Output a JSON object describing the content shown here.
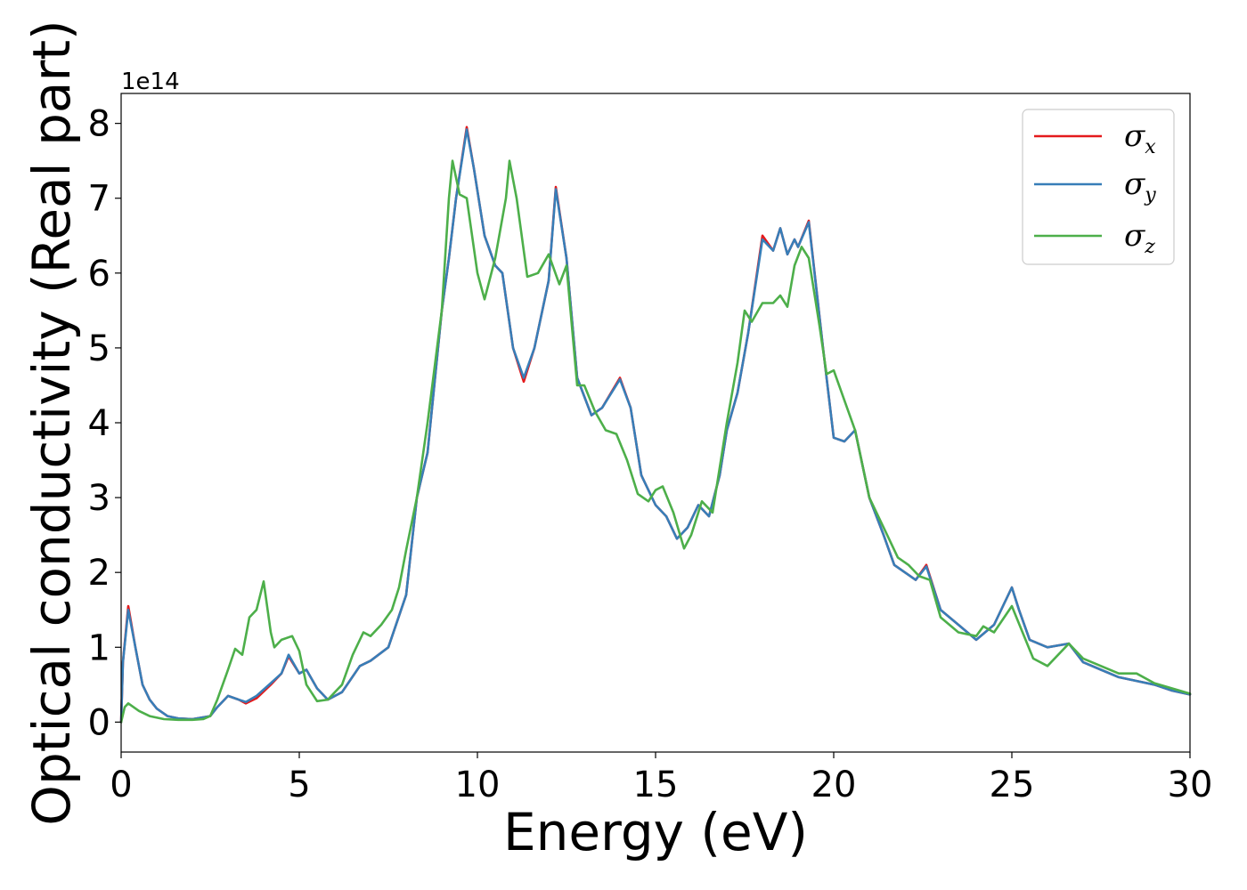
{
  "chart_data": {
    "type": "line",
    "xlabel": "Energy (eV)",
    "ylabel": "Optical conductivity (Real part)",
    "y_offset_label": "1e14",
    "xlim": [
      0,
      30
    ],
    "ylim": [
      -0.4,
      8.4
    ],
    "xticks": [
      0,
      5,
      10,
      15,
      20,
      25,
      30
    ],
    "yticks": [
      0,
      1,
      2,
      3,
      4,
      5,
      6,
      7,
      8
    ],
    "grid": false,
    "legend_position": "top-right",
    "series": [
      {
        "name": "σx",
        "legend_symbol": "σ",
        "legend_sub": "x",
        "color": "#e41a1c",
        "points": [
          [
            0,
            0.0
          ],
          [
            0.05,
            0.8
          ],
          [
            0.2,
            1.55
          ],
          [
            0.4,
            1.0
          ],
          [
            0.6,
            0.5
          ],
          [
            0.8,
            0.3
          ],
          [
            1.0,
            0.18
          ],
          [
            1.3,
            0.08
          ],
          [
            1.6,
            0.05
          ],
          [
            2.0,
            0.04
          ],
          [
            2.5,
            0.08
          ],
          [
            2.7,
            0.2
          ],
          [
            3.0,
            0.35
          ],
          [
            3.3,
            0.3
          ],
          [
            3.5,
            0.25
          ],
          [
            3.8,
            0.32
          ],
          [
            4.2,
            0.5
          ],
          [
            4.5,
            0.65
          ],
          [
            4.7,
            0.88
          ],
          [
            5.0,
            0.65
          ],
          [
            5.2,
            0.7
          ],
          [
            5.5,
            0.45
          ],
          [
            5.8,
            0.3
          ],
          [
            6.2,
            0.4
          ],
          [
            6.7,
            0.75
          ],
          [
            7.0,
            0.82
          ],
          [
            7.5,
            1.0
          ],
          [
            8.0,
            1.7
          ],
          [
            8.3,
            3.0
          ],
          [
            8.6,
            3.6
          ],
          [
            9.0,
            5.5
          ],
          [
            9.2,
            6.2
          ],
          [
            9.4,
            7.0
          ],
          [
            9.7,
            7.95
          ],
          [
            9.9,
            7.4
          ],
          [
            10.2,
            6.5
          ],
          [
            10.5,
            6.1
          ],
          [
            10.7,
            6.0
          ],
          [
            11.0,
            5.0
          ],
          [
            11.3,
            4.55
          ],
          [
            11.6,
            5.0
          ],
          [
            12.0,
            5.9
          ],
          [
            12.2,
            7.15
          ],
          [
            12.5,
            6.2
          ],
          [
            12.8,
            4.6
          ],
          [
            13.2,
            4.1
          ],
          [
            13.5,
            4.2
          ],
          [
            14.0,
            4.6
          ],
          [
            14.3,
            4.2
          ],
          [
            14.6,
            3.3
          ],
          [
            15.0,
            2.9
          ],
          [
            15.3,
            2.75
          ],
          [
            15.6,
            2.45
          ],
          [
            15.9,
            2.6
          ],
          [
            16.2,
            2.9
          ],
          [
            16.5,
            2.75
          ],
          [
            16.8,
            3.3
          ],
          [
            17.0,
            3.9
          ],
          [
            17.3,
            4.4
          ],
          [
            17.6,
            5.2
          ],
          [
            18.0,
            6.5
          ],
          [
            18.3,
            6.3
          ],
          [
            18.5,
            6.6
          ],
          [
            18.7,
            6.25
          ],
          [
            18.9,
            6.45
          ],
          [
            19.0,
            6.35
          ],
          [
            19.3,
            6.7
          ],
          [
            19.7,
            5.0
          ],
          [
            20.0,
            3.8
          ],
          [
            20.3,
            3.75
          ],
          [
            20.6,
            3.9
          ],
          [
            21.0,
            3.0
          ],
          [
            21.4,
            2.5
          ],
          [
            21.7,
            2.1
          ],
          [
            22.0,
            2.0
          ],
          [
            22.3,
            1.9
          ],
          [
            22.6,
            2.1
          ],
          [
            23.0,
            1.5
          ],
          [
            23.5,
            1.3
          ],
          [
            24.0,
            1.1
          ],
          [
            24.5,
            1.3
          ],
          [
            25.0,
            1.8
          ],
          [
            25.2,
            1.5
          ],
          [
            25.5,
            1.1
          ],
          [
            26.0,
            1.0
          ],
          [
            26.6,
            1.05
          ],
          [
            27.0,
            0.8
          ],
          [
            27.5,
            0.7
          ],
          [
            28.0,
            0.6
          ],
          [
            28.5,
            0.55
          ],
          [
            29.0,
            0.5
          ],
          [
            29.5,
            0.42
          ],
          [
            30.0,
            0.37
          ]
        ]
      },
      {
        "name": "σy",
        "legend_symbol": "σ",
        "legend_sub": "y",
        "color": "#377eb8",
        "points": [
          [
            0,
            0.0
          ],
          [
            0.05,
            0.8
          ],
          [
            0.2,
            1.5
          ],
          [
            0.4,
            1.0
          ],
          [
            0.6,
            0.5
          ],
          [
            0.8,
            0.3
          ],
          [
            1.0,
            0.18
          ],
          [
            1.3,
            0.08
          ],
          [
            1.6,
            0.05
          ],
          [
            2.0,
            0.04
          ],
          [
            2.5,
            0.08
          ],
          [
            2.7,
            0.2
          ],
          [
            3.0,
            0.35
          ],
          [
            3.3,
            0.3
          ],
          [
            3.5,
            0.27
          ],
          [
            3.8,
            0.35
          ],
          [
            4.2,
            0.52
          ],
          [
            4.5,
            0.65
          ],
          [
            4.7,
            0.9
          ],
          [
            5.0,
            0.65
          ],
          [
            5.2,
            0.7
          ],
          [
            5.5,
            0.45
          ],
          [
            5.8,
            0.3
          ],
          [
            6.2,
            0.4
          ],
          [
            6.7,
            0.75
          ],
          [
            7.0,
            0.82
          ],
          [
            7.5,
            1.0
          ],
          [
            8.0,
            1.7
          ],
          [
            8.3,
            3.0
          ],
          [
            8.6,
            3.6
          ],
          [
            9.0,
            5.5
          ],
          [
            9.2,
            6.2
          ],
          [
            9.4,
            7.0
          ],
          [
            9.7,
            7.92
          ],
          [
            9.9,
            7.4
          ],
          [
            10.2,
            6.5
          ],
          [
            10.5,
            6.1
          ],
          [
            10.7,
            6.0
          ],
          [
            11.0,
            5.0
          ],
          [
            11.3,
            4.6
          ],
          [
            11.6,
            5.0
          ],
          [
            12.0,
            5.9
          ],
          [
            12.2,
            7.12
          ],
          [
            12.5,
            6.2
          ],
          [
            12.8,
            4.6
          ],
          [
            13.2,
            4.1
          ],
          [
            13.5,
            4.2
          ],
          [
            14.0,
            4.58
          ],
          [
            14.3,
            4.2
          ],
          [
            14.6,
            3.3
          ],
          [
            15.0,
            2.9
          ],
          [
            15.3,
            2.75
          ],
          [
            15.6,
            2.45
          ],
          [
            15.9,
            2.6
          ],
          [
            16.2,
            2.9
          ],
          [
            16.5,
            2.75
          ],
          [
            16.8,
            3.3
          ],
          [
            17.0,
            3.9
          ],
          [
            17.3,
            4.4
          ],
          [
            17.6,
            5.2
          ],
          [
            18.0,
            6.45
          ],
          [
            18.3,
            6.3
          ],
          [
            18.5,
            6.6
          ],
          [
            18.7,
            6.25
          ],
          [
            18.9,
            6.45
          ],
          [
            19.0,
            6.35
          ],
          [
            19.3,
            6.68
          ],
          [
            19.7,
            5.0
          ],
          [
            20.0,
            3.8
          ],
          [
            20.3,
            3.75
          ],
          [
            20.6,
            3.9
          ],
          [
            21.0,
            3.0
          ],
          [
            21.4,
            2.5
          ],
          [
            21.7,
            2.1
          ],
          [
            22.0,
            2.0
          ],
          [
            22.3,
            1.9
          ],
          [
            22.6,
            2.08
          ],
          [
            23.0,
            1.5
          ],
          [
            23.5,
            1.3
          ],
          [
            24.0,
            1.1
          ],
          [
            24.5,
            1.3
          ],
          [
            25.0,
            1.8
          ],
          [
            25.2,
            1.5
          ],
          [
            25.5,
            1.1
          ],
          [
            26.0,
            1.0
          ],
          [
            26.6,
            1.05
          ],
          [
            27.0,
            0.8
          ],
          [
            27.5,
            0.7
          ],
          [
            28.0,
            0.6
          ],
          [
            28.5,
            0.55
          ],
          [
            29.0,
            0.5
          ],
          [
            29.5,
            0.42
          ],
          [
            30.0,
            0.37
          ]
        ]
      },
      {
        "name": "σz",
        "legend_symbol": "σ",
        "legend_sub": "z",
        "color": "#4daf4a",
        "points": [
          [
            0,
            0.0
          ],
          [
            0.1,
            0.2
          ],
          [
            0.2,
            0.25
          ],
          [
            0.5,
            0.15
          ],
          [
            0.8,
            0.08
          ],
          [
            1.2,
            0.04
          ],
          [
            1.6,
            0.03
          ],
          [
            2.0,
            0.03
          ],
          [
            2.3,
            0.04
          ],
          [
            2.5,
            0.08
          ],
          [
            2.7,
            0.3
          ],
          [
            3.0,
            0.7
          ],
          [
            3.2,
            0.98
          ],
          [
            3.4,
            0.9
          ],
          [
            3.6,
            1.4
          ],
          [
            3.8,
            1.5
          ],
          [
            4.0,
            1.88
          ],
          [
            4.2,
            1.2
          ],
          [
            4.3,
            1.0
          ],
          [
            4.5,
            1.1
          ],
          [
            4.8,
            1.15
          ],
          [
            5.0,
            0.95
          ],
          [
            5.2,
            0.5
          ],
          [
            5.5,
            0.28
          ],
          [
            5.8,
            0.3
          ],
          [
            6.2,
            0.5
          ],
          [
            6.5,
            0.9
          ],
          [
            6.8,
            1.2
          ],
          [
            7.0,
            1.15
          ],
          [
            7.3,
            1.3
          ],
          [
            7.6,
            1.5
          ],
          [
            7.8,
            1.8
          ],
          [
            8.0,
            2.3
          ],
          [
            8.3,
            3.0
          ],
          [
            8.6,
            4.0
          ],
          [
            9.0,
            5.5
          ],
          [
            9.2,
            7.0
          ],
          [
            9.3,
            7.5
          ],
          [
            9.5,
            7.05
          ],
          [
            9.7,
            7.0
          ],
          [
            10.0,
            6.0
          ],
          [
            10.2,
            5.65
          ],
          [
            10.5,
            6.2
          ],
          [
            10.8,
            7.0
          ],
          [
            10.9,
            7.5
          ],
          [
            11.1,
            7.0
          ],
          [
            11.4,
            5.95
          ],
          [
            11.7,
            6.0
          ],
          [
            12.0,
            6.25
          ],
          [
            12.3,
            5.85
          ],
          [
            12.5,
            6.1
          ],
          [
            12.8,
            4.5
          ],
          [
            13.0,
            4.5
          ],
          [
            13.3,
            4.15
          ],
          [
            13.6,
            3.9
          ],
          [
            13.9,
            3.85
          ],
          [
            14.2,
            3.5
          ],
          [
            14.5,
            3.05
          ],
          [
            14.8,
            2.95
          ],
          [
            15.0,
            3.1
          ],
          [
            15.2,
            3.15
          ],
          [
            15.5,
            2.8
          ],
          [
            15.8,
            2.32
          ],
          [
            16.0,
            2.5
          ],
          [
            16.3,
            2.95
          ],
          [
            16.6,
            2.8
          ],
          [
            17.0,
            4.0
          ],
          [
            17.3,
            4.8
          ],
          [
            17.5,
            5.5
          ],
          [
            17.7,
            5.35
          ],
          [
            18.0,
            5.6
          ],
          [
            18.3,
            5.6
          ],
          [
            18.5,
            5.7
          ],
          [
            18.7,
            5.55
          ],
          [
            18.9,
            6.1
          ],
          [
            19.1,
            6.35
          ],
          [
            19.3,
            6.2
          ],
          [
            19.6,
            5.3
          ],
          [
            19.8,
            4.65
          ],
          [
            20.0,
            4.7
          ],
          [
            20.3,
            4.3
          ],
          [
            20.6,
            3.9
          ],
          [
            21.0,
            3.0
          ],
          [
            21.5,
            2.5
          ],
          [
            21.8,
            2.2
          ],
          [
            22.1,
            2.1
          ],
          [
            22.4,
            1.95
          ],
          [
            22.7,
            1.9
          ],
          [
            23.0,
            1.4
          ],
          [
            23.5,
            1.2
          ],
          [
            24.0,
            1.15
          ],
          [
            24.2,
            1.28
          ],
          [
            24.5,
            1.2
          ],
          [
            25.0,
            1.55
          ],
          [
            25.3,
            1.2
          ],
          [
            25.6,
            0.85
          ],
          [
            26.0,
            0.75
          ],
          [
            26.6,
            1.05
          ],
          [
            27.0,
            0.85
          ],
          [
            27.5,
            0.75
          ],
          [
            28.0,
            0.65
          ],
          [
            28.5,
            0.65
          ],
          [
            29.0,
            0.52
          ],
          [
            29.5,
            0.45
          ],
          [
            30.0,
            0.38
          ]
        ]
      }
    ]
  }
}
